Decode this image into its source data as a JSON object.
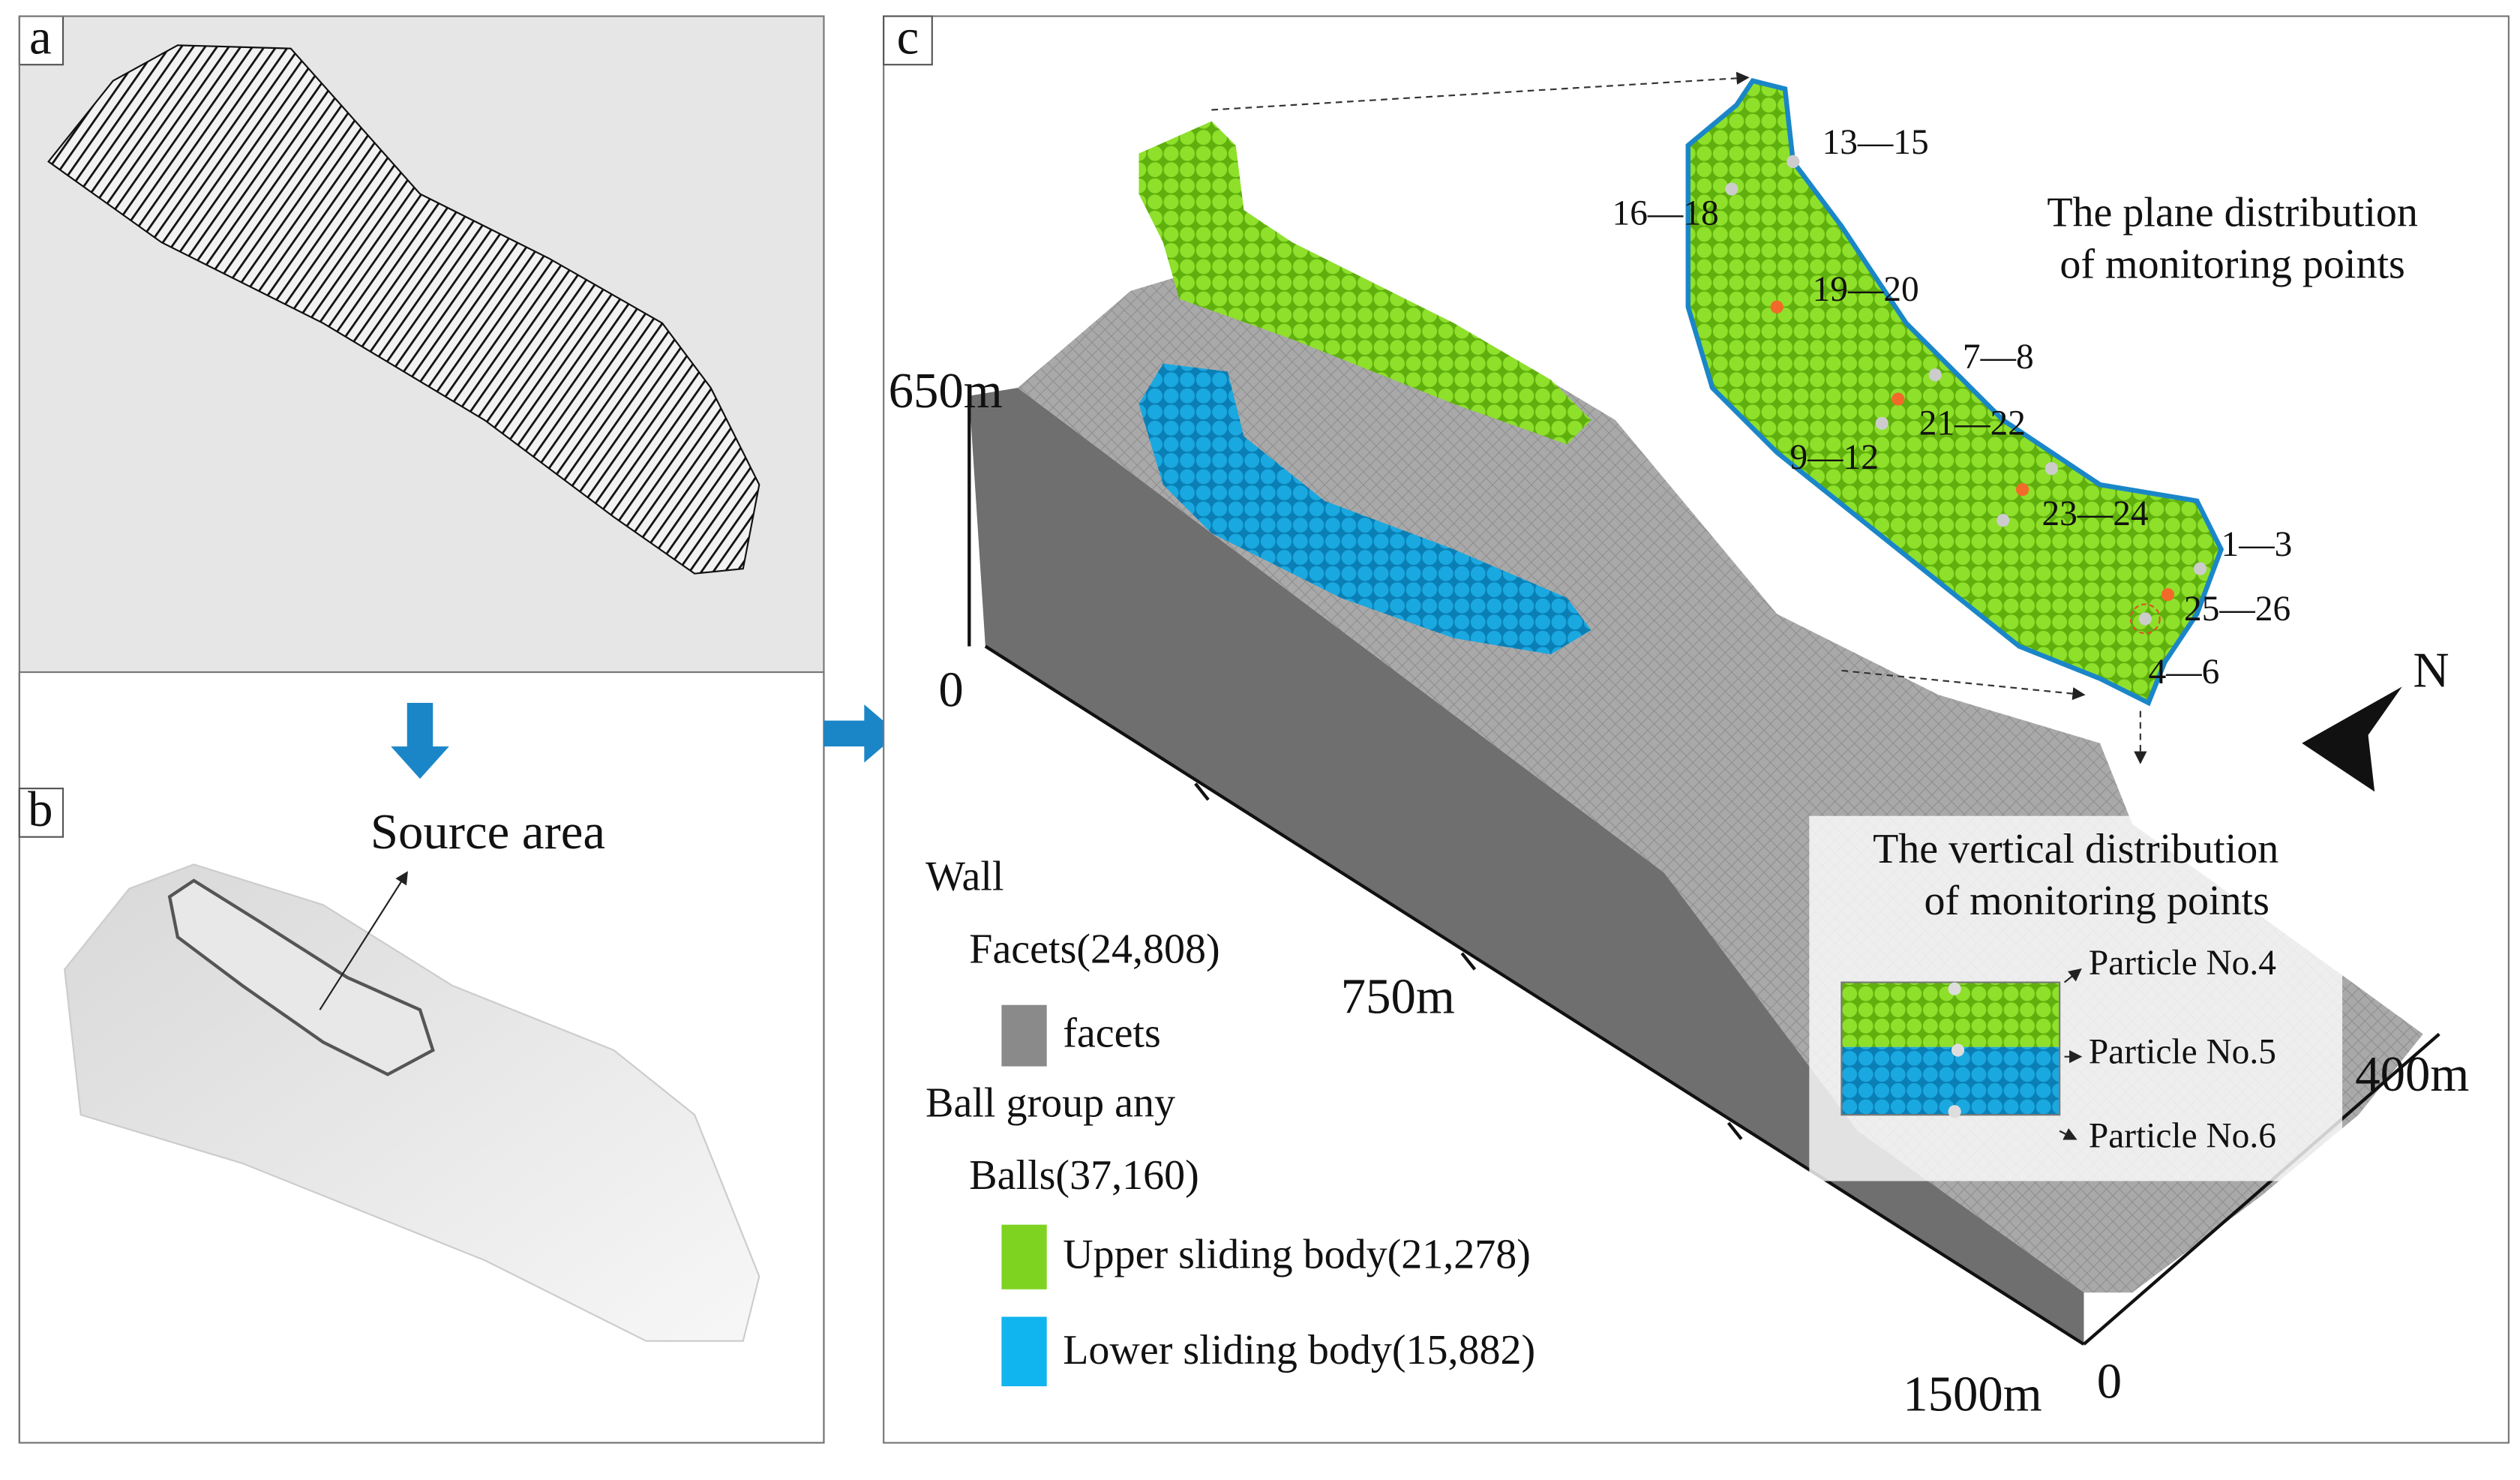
{
  "panels": {
    "a": {
      "label": "a"
    },
    "b": {
      "label": "b",
      "annotation": "Source area"
    },
    "c": {
      "label": "c",
      "axes": {
        "height_top": "650m",
        "height_zero": "0",
        "length_mid": "750m",
        "length_end": "1500m",
        "width_zero": "0",
        "width_end": "400m"
      },
      "plane_distribution": {
        "title": [
          "The plane distribution",
          "of monitoring points"
        ],
        "points": [
          "13—15",
          "16—18",
          "19—20",
          "7—8",
          "21—22",
          "9—12",
          "23—24",
          "1—3",
          "25—26",
          "4—6"
        ]
      },
      "north": "N",
      "legend": {
        "wall": "Wall",
        "facets_count": "Facets(24,808)",
        "facets": "facets",
        "ball_group": "Ball group any",
        "balls_count": "Balls(37,160)",
        "upper": "Upper sliding body(21,278)",
        "lower": "Lower sliding body(15,882)"
      },
      "vertical_distribution": {
        "title": [
          "The vertical distribution",
          "of monitoring points"
        ],
        "particles": [
          "Particle No.4",
          "Particle No.5",
          "Particle No.6"
        ]
      }
    }
  }
}
